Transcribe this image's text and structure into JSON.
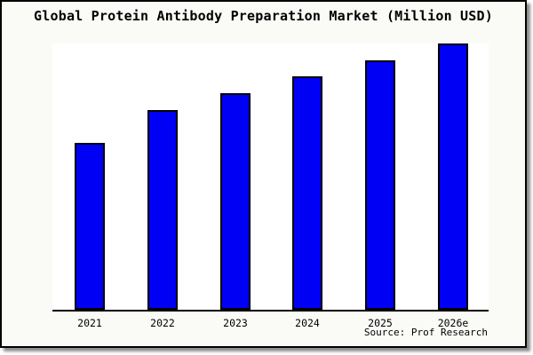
{
  "title": "Global Protein Antibody Preparation Market (Million USD)",
  "source": "Source: Prof Research",
  "colors": {
    "frame_background": "#fafaf7",
    "plot_background": "#ffffff",
    "bar_fill": "#0000f5",
    "bar_edge": "#000000",
    "axis": "#000000",
    "text": "#000000"
  },
  "chart_data": {
    "type": "bar",
    "title": "Global Protein Antibody Preparation Market (Million USD)",
    "categories": [
      "2021",
      "2022",
      "2023",
      "2024",
      "2025",
      "2026e"
    ],
    "values": [
      62.8,
      75.1,
      81.5,
      87.7,
      93.7,
      100
    ],
    "values_unit": "relative index (no y-axis labels shown; heights estimated from chart, 2026e = 100)",
    "xlabel": "",
    "ylabel": "",
    "ylim": [
      0,
      100
    ],
    "grid": false,
    "legend": null,
    "bar_color": "#0000f5",
    "bar_edge_color": "#000000",
    "annotations": [
      "Source: Prof Research"
    ]
  }
}
